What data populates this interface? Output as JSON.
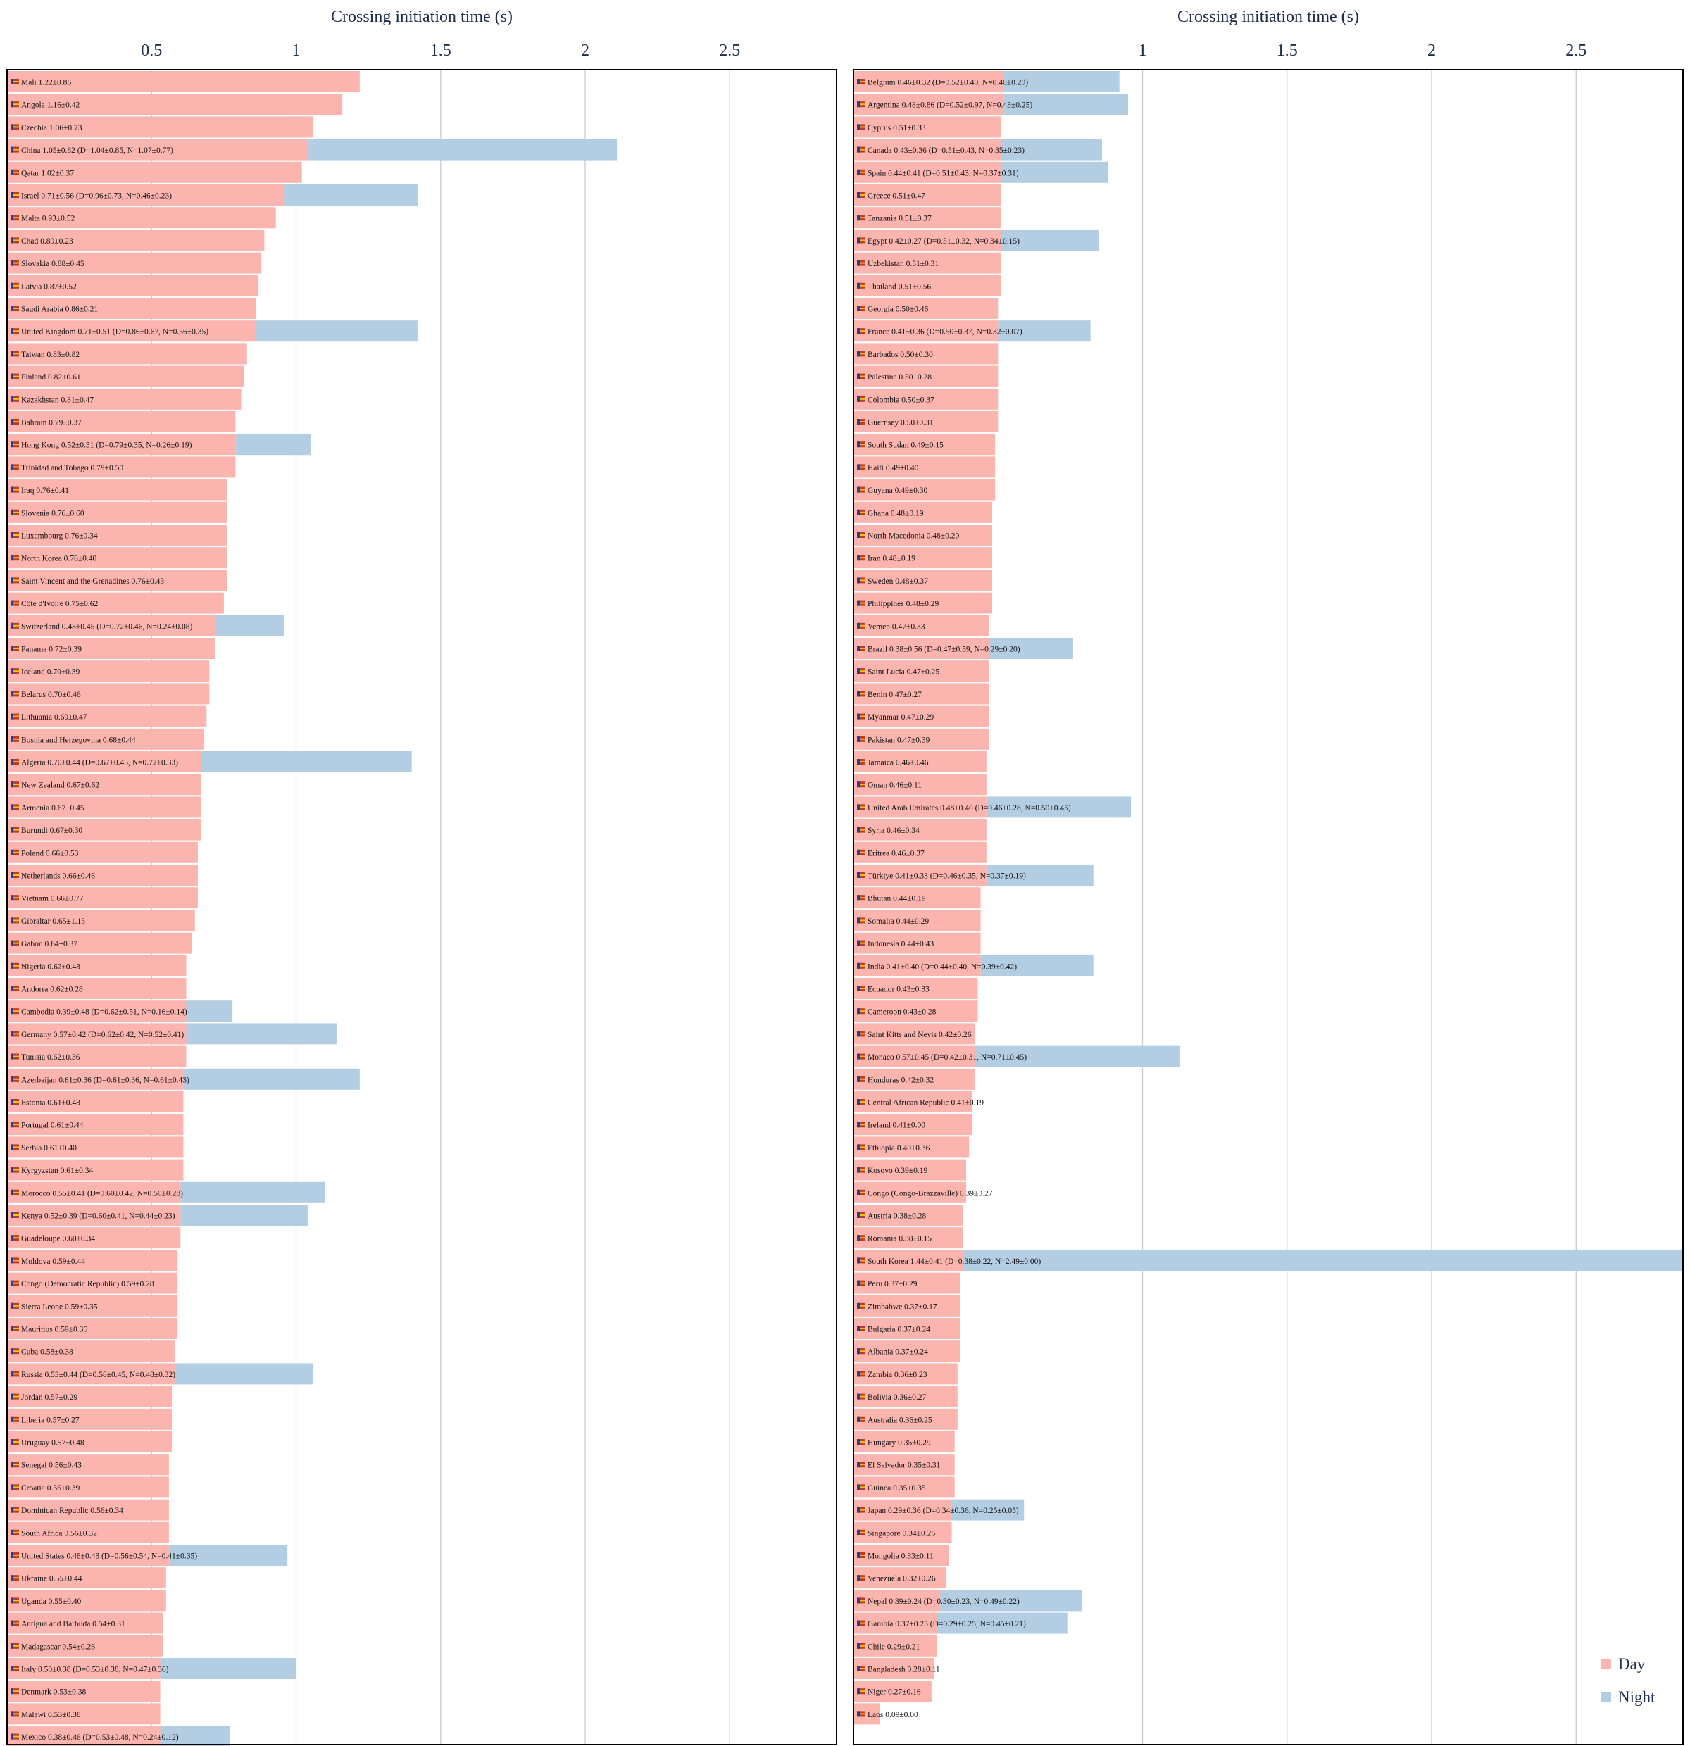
{
  "chart_data": [
    {
      "type": "bar",
      "orientation": "horizontal",
      "xlabel": "Crossing initiation time (s)",
      "xticks": [
        0.5,
        1,
        1.5,
        2,
        2.5
      ],
      "xlim": [
        0,
        2.87
      ],
      "grid": true,
      "series": [
        {
          "name": "Day",
          "color": "#fbb4ae"
        },
        {
          "name": "Night",
          "color": "#b3cde3"
        }
      ],
      "rows": [
        {
          "label": "Mali 1.22±0.86",
          "day": 1.22,
          "night": null
        },
        {
          "label": "Angola 1.16±0.42",
          "day": 1.16,
          "night": null
        },
        {
          "label": "Czechia 1.06±0.73",
          "day": 1.06,
          "night": null
        },
        {
          "label": "China 1.05±0.82 (D=1.04±0.85, N=1.07±0.77)",
          "day": 1.04,
          "night": 2.11
        },
        {
          "label": "Qatar 1.02±0.37",
          "day": 1.02,
          "night": null
        },
        {
          "label": "Israel 0.71±0.56 (D=0.96±0.73, N=0.46±0.23)",
          "day": 0.96,
          "night": 1.42
        },
        {
          "label": "Malta 0.93±0.52",
          "day": 0.93,
          "night": null
        },
        {
          "label": "Chad 0.89±0.23",
          "day": 0.89,
          "night": null
        },
        {
          "label": "Slovakia 0.88±0.45",
          "day": 0.88,
          "night": null
        },
        {
          "label": "Latvia 0.87±0.52",
          "day": 0.87,
          "night": null
        },
        {
          "label": "Saudi Arabia 0.86±0.21",
          "day": 0.86,
          "night": null
        },
        {
          "label": "United Kingdom 0.71±0.51 (D=0.86±0.67, N=0.56±0.35)",
          "day": 0.86,
          "night": 1.42
        },
        {
          "label": "Taiwan 0.83±0.82",
          "day": 0.83,
          "night": null
        },
        {
          "label": "Finland 0.82±0.61",
          "day": 0.82,
          "night": null
        },
        {
          "label": "Kazakhstan 0.81±0.47",
          "day": 0.81,
          "night": null
        },
        {
          "label": "Bahrain 0.79±0.37",
          "day": 0.79,
          "night": null
        },
        {
          "label": "Hong Kong 0.52±0.31 (D=0.79±0.35, N=0.26±0.19)",
          "day": 0.79,
          "night": 1.05
        },
        {
          "label": "Trinidad and Tobago 0.79±0.50",
          "day": 0.79,
          "night": null
        },
        {
          "label": "Iraq 0.76±0.41",
          "day": 0.76,
          "night": null
        },
        {
          "label": "Slovenia 0.76±0.60",
          "day": 0.76,
          "night": null
        },
        {
          "label": "Luxembourg 0.76±0.34",
          "day": 0.76,
          "night": null
        },
        {
          "label": "North Korea 0.76±0.40",
          "day": 0.76,
          "night": null
        },
        {
          "label": "Saint Vincent and the Grenadines 0.76±0.43",
          "day": 0.76,
          "night": null
        },
        {
          "label": "Côte d'Ivoire 0.75±0.62",
          "day": 0.75,
          "night": null
        },
        {
          "label": "Switzerland 0.48±0.45 (D=0.72±0.46, N=0.24±0.08)",
          "day": 0.72,
          "night": 0.96
        },
        {
          "label": "Panama 0.72±0.39",
          "day": 0.72,
          "night": null
        },
        {
          "label": "Iceland 0.70±0.39",
          "day": 0.7,
          "night": null
        },
        {
          "label": "Belarus 0.70±0.46",
          "day": 0.7,
          "night": null
        },
        {
          "label": "Lithuania 0.69±0.47",
          "day": 0.69,
          "night": null
        },
        {
          "label": "Bosnia and Herzegovina 0.68±0.44",
          "day": 0.68,
          "night": null
        },
        {
          "label": "Algeria 0.70±0.44 (D=0.67±0.45, N=0.72±0.33)",
          "day": 0.67,
          "night": 1.4
        },
        {
          "label": "New Zealand 0.67±0.62",
          "day": 0.67,
          "night": null
        },
        {
          "label": "Armenia 0.67±0.45",
          "day": 0.67,
          "night": null
        },
        {
          "label": "Burundi 0.67±0.30",
          "day": 0.67,
          "night": null
        },
        {
          "label": "Poland 0.66±0.53",
          "day": 0.66,
          "night": null
        },
        {
          "label": "Netherlands 0.66±0.46",
          "day": 0.66,
          "night": null
        },
        {
          "label": "Vietnam 0.66±0.77",
          "day": 0.66,
          "night": null
        },
        {
          "label": "Gibraltar 0.65±1.15",
          "day": 0.65,
          "night": null
        },
        {
          "label": "Gabon 0.64±0.37",
          "day": 0.64,
          "night": null
        },
        {
          "label": "Nigeria 0.62±0.48",
          "day": 0.62,
          "night": null
        },
        {
          "label": "Andorra 0.62±0.28",
          "day": 0.62,
          "night": null
        },
        {
          "label": "Cambodia 0.39±0.48 (D=0.62±0.51, N=0.16±0.14)",
          "day": 0.62,
          "night": 0.78
        },
        {
          "label": "Germany 0.57±0.42 (D=0.62±0.42, N=0.52±0.41)",
          "day": 0.62,
          "night": 1.14
        },
        {
          "label": "Tunisia 0.62±0.36",
          "day": 0.62,
          "night": null
        },
        {
          "label": "Azerbaijan 0.61±0.36 (D=0.61±0.36, N=0.61±0.43)",
          "day": 0.61,
          "night": 1.22
        },
        {
          "label": "Estonia 0.61±0.48",
          "day": 0.61,
          "night": null
        },
        {
          "label": "Portugal 0.61±0.44",
          "day": 0.61,
          "night": null
        },
        {
          "label": "Serbia 0.61±0.40",
          "day": 0.61,
          "night": null
        },
        {
          "label": "Kyrgyzstan 0.61±0.34",
          "day": 0.61,
          "night": null
        },
        {
          "label": "Morocco 0.55±0.41 (D=0.60±0.42, N=0.50±0.28)",
          "day": 0.6,
          "night": 1.1
        },
        {
          "label": "Kenya 0.52±0.39 (D=0.60±0.41, N=0.44±0.23)",
          "day": 0.6,
          "night": 1.04
        },
        {
          "label": "Guadeloupe 0.60±0.34",
          "day": 0.6,
          "night": null
        },
        {
          "label": "Moldova 0.59±0.44",
          "day": 0.59,
          "night": null
        },
        {
          "label": "Congo (Democratic Republic) 0.59±0.28",
          "day": 0.59,
          "night": null
        },
        {
          "label": "Sierra Leone 0.59±0.35",
          "day": 0.59,
          "night": null
        },
        {
          "label": "Mauritius 0.59±0.36",
          "day": 0.59,
          "night": null
        },
        {
          "label": "Cuba 0.58±0.38",
          "day": 0.58,
          "night": null
        },
        {
          "label": "Russia 0.53±0.44 (D=0.58±0.45, N=0.48±0.32)",
          "day": 0.58,
          "night": 1.06
        },
        {
          "label": "Jordan 0.57±0.29",
          "day": 0.57,
          "night": null
        },
        {
          "label": "Liberia 0.57±0.27",
          "day": 0.57,
          "night": null
        },
        {
          "label": "Uruguay 0.57±0.48",
          "day": 0.57,
          "night": null
        },
        {
          "label": "Senegal 0.56±0.43",
          "day": 0.56,
          "night": null
        },
        {
          "label": "Croatia 0.56±0.39",
          "day": 0.56,
          "night": null
        },
        {
          "label": "Dominican Republic 0.56±0.34",
          "day": 0.56,
          "night": null
        },
        {
          "label": "South Africa 0.56±0.32",
          "day": 0.56,
          "night": null
        },
        {
          "label": "United States 0.48±0.48 (D=0.56±0.54, N=0.41±0.35)",
          "day": 0.56,
          "night": 0.97
        },
        {
          "label": "Ukraine 0.55±0.44",
          "day": 0.55,
          "night": null
        },
        {
          "label": "Uganda 0.55±0.40",
          "day": 0.55,
          "night": null
        },
        {
          "label": "Antigua and Barbuda 0.54±0.31",
          "day": 0.54,
          "night": null
        },
        {
          "label": "Madagascar 0.54±0.26",
          "day": 0.54,
          "night": null
        },
        {
          "label": "Italy 0.50±0.38 (D=0.53±0.38, N=0.47±0.36)",
          "day": 0.53,
          "night": 1.0
        },
        {
          "label": "Denmark 0.53±0.38",
          "day": 0.53,
          "night": null
        },
        {
          "label": "Malawi 0.53±0.38",
          "day": 0.53,
          "night": null
        },
        {
          "label": "Mexico 0.38±0.46 (D=0.53±0.48, N=0.24±0.12)",
          "day": 0.53,
          "night": 0.77
        }
      ]
    },
    {
      "type": "bar",
      "orientation": "horizontal",
      "xlabel": "Crossing initiation time (s)",
      "xticks": [
        1,
        1.5,
        2,
        2.5
      ],
      "xlim": [
        0,
        2.87
      ],
      "grid": true,
      "legend_position": "bottom-right",
      "series": [
        {
          "name": "Day",
          "color": "#fbb4ae"
        },
        {
          "name": "Night",
          "color": "#b3cde3"
        }
      ],
      "rows": [
        {
          "label": "Belgium 0.46±0.32 (D=0.52±0.40, N=0.40±0.20)",
          "day": 0.52,
          "night": 0.92
        },
        {
          "label": "Argentina 0.48±0.86 (D=0.52±0.97, N=0.43±0.25)",
          "day": 0.52,
          "night": 0.95
        },
        {
          "label": "Cyprus 0.51±0.33",
          "day": 0.51,
          "night": null
        },
        {
          "label": "Canada 0.43±0.36 (D=0.51±0.43, N=0.35±0.23)",
          "day": 0.51,
          "night": 0.86
        },
        {
          "label": "Spain 0.44±0.41 (D=0.51±0.43, N=0.37±0.31)",
          "day": 0.51,
          "night": 0.88
        },
        {
          "label": "Greece 0.51±0.47",
          "day": 0.51,
          "night": null
        },
        {
          "label": "Tanzania 0.51±0.37",
          "day": 0.51,
          "night": null
        },
        {
          "label": "Egypt 0.42±0.27 (D=0.51±0.32, N=0.34±0.15)",
          "day": 0.51,
          "night": 0.85
        },
        {
          "label": "Uzbekistan 0.51±0.31",
          "day": 0.51,
          "night": null
        },
        {
          "label": "Thailand 0.51±0.56",
          "day": 0.51,
          "night": null
        },
        {
          "label": "Georgia 0.50±0.46",
          "day": 0.5,
          "night": null
        },
        {
          "label": "France 0.41±0.36 (D=0.50±0.37, N=0.32±0.07)",
          "day": 0.5,
          "night": 0.82
        },
        {
          "label": "Barbados 0.50±0.30",
          "day": 0.5,
          "night": null
        },
        {
          "label": "Palestine 0.50±0.28",
          "day": 0.5,
          "night": null
        },
        {
          "label": "Colombia 0.50±0.37",
          "day": 0.5,
          "night": null
        },
        {
          "label": "Guernsey 0.50±0.31",
          "day": 0.5,
          "night": null
        },
        {
          "label": "South Sudan 0.49±0.15",
          "day": 0.49,
          "night": null
        },
        {
          "label": "Haiti 0.49±0.40",
          "day": 0.49,
          "night": null
        },
        {
          "label": "Guyana 0.49±0.30",
          "day": 0.49,
          "night": null
        },
        {
          "label": "Ghana 0.48±0.19",
          "day": 0.48,
          "night": null
        },
        {
          "label": "North Macedonia 0.48±0.20",
          "day": 0.48,
          "night": null
        },
        {
          "label": "Iran 0.48±0.19",
          "day": 0.48,
          "night": null
        },
        {
          "label": "Sweden 0.48±0.37",
          "day": 0.48,
          "night": null
        },
        {
          "label": "Philippines 0.48±0.29",
          "day": 0.48,
          "night": null
        },
        {
          "label": "Yemen 0.47±0.33",
          "day": 0.47,
          "night": null
        },
        {
          "label": "Brazil 0.38±0.56 (D=0.47±0.59, N=0.29±0.20)",
          "day": 0.47,
          "night": 0.76
        },
        {
          "label": "Saint Lucia 0.47±0.25",
          "day": 0.47,
          "night": null
        },
        {
          "label": "Benin 0.47±0.27",
          "day": 0.47,
          "night": null
        },
        {
          "label": "Myanmar 0.47±0.29",
          "day": 0.47,
          "night": null
        },
        {
          "label": "Pakistan 0.47±0.39",
          "day": 0.47,
          "night": null
        },
        {
          "label": "Jamaica 0.46±0.46",
          "day": 0.46,
          "night": null
        },
        {
          "label": "Oman 0.46±0.11",
          "day": 0.46,
          "night": null
        },
        {
          "label": "United Arab Emirates 0.48±0.40 (D=0.46±0.28, N=0.50±0.45)",
          "day": 0.46,
          "night": 0.96
        },
        {
          "label": "Syria 0.46±0.34",
          "day": 0.46,
          "night": null
        },
        {
          "label": "Eritrea 0.46±0.37",
          "day": 0.46,
          "night": null
        },
        {
          "label": "Türkiye 0.41±0.33 (D=0.46±0.35, N=0.37±0.19)",
          "day": 0.46,
          "night": 0.83
        },
        {
          "label": "Bhutan 0.44±0.19",
          "day": 0.44,
          "night": null
        },
        {
          "label": "Somalia 0.44±0.29",
          "day": 0.44,
          "night": null
        },
        {
          "label": "Indonesia 0.44±0.43",
          "day": 0.44,
          "night": null
        },
        {
          "label": "India 0.41±0.40 (D=0.44±0.40, N=0.39±0.42)",
          "day": 0.44,
          "night": 0.83
        },
        {
          "label": "Ecuador 0.43±0.33",
          "day": 0.43,
          "night": null
        },
        {
          "label": "Cameroon 0.43±0.28",
          "day": 0.43,
          "night": null
        },
        {
          "label": "Saint Kitts and Nevis 0.42±0.26",
          "day": 0.42,
          "night": null
        },
        {
          "label": "Monaco 0.57±0.45 (D=0.42±0.31, N=0.71±0.45)",
          "day": 0.42,
          "night": 1.13
        },
        {
          "label": "Honduras 0.42±0.32",
          "day": 0.42,
          "night": null
        },
        {
          "label": "Central African Republic 0.41±0.19",
          "day": 0.41,
          "night": null
        },
        {
          "label": "Ireland 0.41±0.00",
          "day": 0.41,
          "night": null
        },
        {
          "label": "Ethiopia 0.40±0.36",
          "day": 0.4,
          "night": null
        },
        {
          "label": "Kosovo 0.39±0.19",
          "day": 0.39,
          "night": null
        },
        {
          "label": "Congo (Congo-Brazzaville) 0.39±0.27",
          "day": 0.39,
          "night": null
        },
        {
          "label": "Austria 0.38±0.28",
          "day": 0.38,
          "night": null
        },
        {
          "label": "Romania 0.38±0.15",
          "day": 0.38,
          "night": null
        },
        {
          "label": "South Korea 1.44±0.41 (D=0.38±0.22, N=2.49±0.00)",
          "day": 0.38,
          "night": 2.87
        },
        {
          "label": "Peru 0.37±0.29",
          "day": 0.37,
          "night": null
        },
        {
          "label": "Zimbabwe 0.37±0.17",
          "day": 0.37,
          "night": null
        },
        {
          "label": "Bulgaria 0.37±0.24",
          "day": 0.37,
          "night": null
        },
        {
          "label": "Albania 0.37±0.24",
          "day": 0.37,
          "night": null
        },
        {
          "label": "Zambia 0.36±0.23",
          "day": 0.36,
          "night": null
        },
        {
          "label": "Bolivia 0.36±0.27",
          "day": 0.36,
          "night": null
        },
        {
          "label": "Australia 0.36±0.25",
          "day": 0.36,
          "night": null
        },
        {
          "label": "Hungary 0.35±0.29",
          "day": 0.35,
          "night": null
        },
        {
          "label": "El Salvador 0.35±0.31",
          "day": 0.35,
          "night": null
        },
        {
          "label": "Guinea 0.35±0.35",
          "day": 0.35,
          "night": null
        },
        {
          "label": "Japan 0.29±0.36 (D=0.34±0.36, N=0.25±0.05)",
          "day": 0.34,
          "night": 0.59
        },
        {
          "label": "Singapore 0.34±0.26",
          "day": 0.34,
          "night": null
        },
        {
          "label": "Mongolia 0.33±0.11",
          "day": 0.33,
          "night": null
        },
        {
          "label": "Venezuela 0.32±0.26",
          "day": 0.32,
          "night": null
        },
        {
          "label": "Nepal 0.39±0.24 (D=0.30±0.23, N=0.49±0.22)",
          "day": 0.3,
          "night": 0.79
        },
        {
          "label": "Gambia 0.37±0.25 (D=0.29±0.25, N=0.45±0.21)",
          "day": 0.29,
          "night": 0.74
        },
        {
          "label": "Chile 0.29±0.21",
          "day": 0.29,
          "night": null
        },
        {
          "label": "Bangladesh 0.28±0.11",
          "day": 0.28,
          "night": null
        },
        {
          "label": "Niger 0.27±0.16",
          "day": 0.27,
          "night": null
        },
        {
          "label": "Laos 0.09±0.00",
          "day": 0.09,
          "night": null
        }
      ]
    }
  ]
}
